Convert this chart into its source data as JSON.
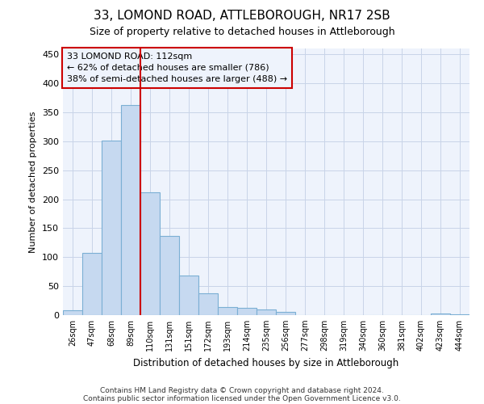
{
  "title1": "33, LOMOND ROAD, ATTLEBOROUGH, NR17 2SB",
  "title2": "Size of property relative to detached houses in Attleborough",
  "xlabel": "Distribution of detached houses by size in Attleborough",
  "ylabel": "Number of detached properties",
  "footnote1": "Contains HM Land Registry data © Crown copyright and database right 2024.",
  "footnote2": "Contains public sector information licensed under the Open Government Licence v3.0.",
  "bin_labels": [
    "26sqm",
    "47sqm",
    "68sqm",
    "89sqm",
    "110sqm",
    "131sqm",
    "151sqm",
    "172sqm",
    "193sqm",
    "214sqm",
    "235sqm",
    "256sqm",
    "277sqm",
    "298sqm",
    "319sqm",
    "340sqm",
    "360sqm",
    "381sqm",
    "402sqm",
    "423sqm",
    "444sqm"
  ],
  "bar_values": [
    8,
    108,
    301,
    362,
    212,
    136,
    69,
    38,
    14,
    13,
    10,
    5,
    0,
    0,
    0,
    0,
    0,
    0,
    0,
    3,
    1
  ],
  "bar_color": "#c6d9f0",
  "bar_edge_color": "#7bafd4",
  "grid_color": "#c8d4e8",
  "vline_color": "#cc0000",
  "vline_position": 4.0,
  "annotation_line1": "33 LOMOND ROAD: 112sqm",
  "annotation_line2": "← 62% of detached houses are smaller (786)",
  "annotation_line3": "38% of semi-detached houses are larger (488) →",
  "annotation_box_edgecolor": "#cc0000",
  "ylim": [
    0,
    460
  ],
  "yticks": [
    0,
    50,
    100,
    150,
    200,
    250,
    300,
    350,
    400,
    450
  ],
  "bg_color": "#ffffff",
  "plot_bg_color": "#eef3fc"
}
